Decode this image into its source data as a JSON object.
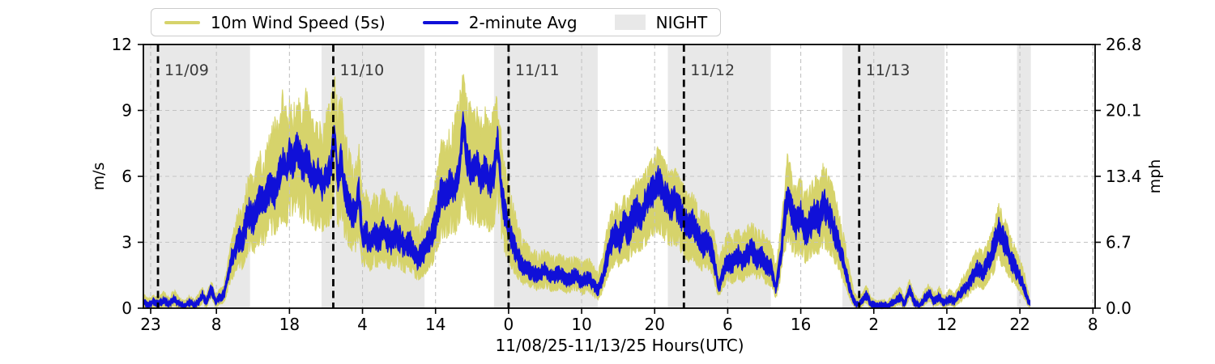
{
  "legend": {
    "items": [
      {
        "label": "10m Wind Speed (5s)",
        "swatch": "line",
        "color": "#d6d36b"
      },
      {
        "label": "2-minute Avg",
        "swatch": "line",
        "color": "#1010d8"
      },
      {
        "label": "NIGHT",
        "swatch": "patch",
        "color": "#e8e8e8"
      }
    ]
  },
  "chart_data": {
    "type": "line",
    "title": "",
    "xlabel": "11/08/25-11/13/25  Hours(UTC)",
    "ylabel_left": "m/s",
    "ylabel_right": "mph",
    "x_range_hours": [
      0,
      130.3
    ],
    "x_epoch": "hours after 2025-11-08 22:00 UTC",
    "ylim_ms": [
      0,
      12
    ],
    "ylim_mph": [
      0,
      26.8
    ],
    "grid": true,
    "colors": {
      "gust_series": "#d6d36b",
      "avg_series": "#1010d8",
      "night_band": "#e8e8e8",
      "gridline": "#c3c3c3",
      "day_line": "#000000",
      "day_label": "#3a3a3a",
      "frame": "#000000"
    },
    "x_ticks": {
      "t": [
        1,
        10,
        20,
        30,
        40,
        50,
        60,
        70,
        80,
        90,
        100,
        110,
        120,
        130
      ],
      "labels": [
        "23",
        "8",
        "18",
        "4",
        "14",
        "0",
        "10",
        "20",
        "6",
        "16",
        "2",
        "12",
        "22",
        "8"
      ]
    },
    "y_ticks_left": {
      "v": [
        0,
        3,
        6,
        9,
        12
      ],
      "labels": [
        "0",
        "3",
        "6",
        "9",
        "12"
      ]
    },
    "y_ticks_right": {
      "v": [
        0,
        3,
        6,
        9,
        12
      ],
      "labels": [
        "0.0",
        "6.7",
        "13.4",
        "20.1",
        "26.8"
      ]
    },
    "night_bands_hours": [
      [
        0,
        14.6
      ],
      [
        24.4,
        38.5
      ],
      [
        48.0,
        62.2
      ],
      [
        71.8,
        85.9
      ],
      [
        95.7,
        109.7
      ],
      [
        119.6,
        121.5
      ]
    ],
    "day_lines": [
      {
        "t": 2,
        "label": "11/09"
      },
      {
        "t": 26,
        "label": "11/10"
      },
      {
        "t": 50,
        "label": "11/11"
      },
      {
        "t": 74,
        "label": "11/12"
      },
      {
        "t": 98,
        "label": "11/13"
      }
    ],
    "series_meta": [
      {
        "name": "10m Wind Speed (5s)",
        "style": "noisy band between lull and gust"
      },
      {
        "name": "2-minute Avg",
        "style": "noisy line around avg"
      }
    ],
    "gust_lo_rule": {
      "mult": 0.62,
      "offset": -0.15,
      "min": 0.01
    },
    "columns": [
      "hours",
      "avg_2min_ms",
      "gust_5s_ms"
    ],
    "points": [
      [
        0,
        0.3,
        0.7
      ],
      [
        0.7,
        0.15,
        0.45
      ],
      [
        1.4,
        0.3,
        0.6
      ],
      [
        2.1,
        0.2,
        0.5
      ],
      [
        2.8,
        0.35,
        0.8
      ],
      [
        3.5,
        0.2,
        0.5
      ],
      [
        4.2,
        0.4,
        0.9
      ],
      [
        4.9,
        0.2,
        0.5
      ],
      [
        5.6,
        0.1,
        0.35
      ],
      [
        6.3,
        0.25,
        0.6
      ],
      [
        7,
        0.15,
        0.4
      ],
      [
        7.6,
        0.3,
        0.7
      ],
      [
        8.1,
        0.6,
        1.0
      ],
      [
        8.6,
        0.25,
        0.6
      ],
      [
        9.3,
        0.9,
        1.3
      ],
      [
        9.9,
        0.3,
        0.7
      ],
      [
        10.5,
        0.5,
        0.9
      ],
      [
        11,
        0.6,
        1.1
      ],
      [
        11.5,
        1.3,
        2.0
      ],
      [
        12,
        2.2,
        3.2
      ],
      [
        12.5,
        2.6,
        3.8
      ],
      [
        13,
        3.2,
        4.6
      ],
      [
        13.5,
        3.0,
        4.4
      ],
      [
        14,
        3.8,
        5.6
      ],
      [
        14.5,
        4.3,
        6.2
      ],
      [
        15,
        4.0,
        6.0
      ],
      [
        15.5,
        4.6,
        6.6
      ],
      [
        16,
        5.0,
        7.2
      ],
      [
        16.5,
        4.7,
        6.8
      ],
      [
        17,
        5.3,
        7.8
      ],
      [
        17.5,
        5.6,
        8.2
      ],
      [
        18,
        5.2,
        8.9
      ],
      [
        18.5,
        6.0,
        8.6
      ],
      [
        19.1,
        6.6,
        10.5
      ],
      [
        19.6,
        6.2,
        9.2
      ],
      [
        20,
        7.0,
        9.6
      ],
      [
        20.5,
        6.6,
        9.2
      ],
      [
        21,
        7.4,
        9.9
      ],
      [
        21.5,
        6.8,
        9.4
      ],
      [
        22,
        6.4,
        9.0
      ],
      [
        22.3,
        6.9,
        10.3
      ],
      [
        23,
        6.2,
        8.8
      ],
      [
        23.5,
        5.8,
        8.4
      ],
      [
        24,
        6.1,
        8.7
      ],
      [
        24.5,
        5.6,
        8.2
      ],
      [
        25,
        5.9,
        9.0
      ],
      [
        25.6,
        6.3,
        9.5
      ],
      [
        26.2,
        8.0,
        10.8
      ],
      [
        26.6,
        6.0,
        9.3
      ],
      [
        27.1,
        6.8,
        10.0
      ],
      [
        27.5,
        5.4,
        8.3
      ],
      [
        28,
        4.9,
        7.6
      ],
      [
        28.5,
        4.4,
        6.8
      ],
      [
        29,
        4.2,
        6.4
      ],
      [
        29.5,
        5.3,
        7.7
      ],
      [
        30,
        3.1,
        5.2
      ],
      [
        30.5,
        3.4,
        5.5
      ],
      [
        31,
        2.9,
        4.8
      ],
      [
        31.6,
        3.3,
        5.3
      ],
      [
        32.2,
        3.1,
        5.0
      ],
      [
        32.8,
        3.6,
        5.6
      ],
      [
        33.4,
        3.2,
        5.1
      ],
      [
        34,
        3.0,
        4.8
      ],
      [
        34.6,
        3.4,
        5.4
      ],
      [
        35.2,
        3.1,
        5.0
      ],
      [
        35.8,
        2.8,
        4.6
      ],
      [
        36.4,
        3.0,
        4.8
      ],
      [
        37,
        2.6,
        4.2
      ],
      [
        37.4,
        2.2,
        3.7
      ],
      [
        37.9,
        2.4,
        3.9
      ],
      [
        38.4,
        2.6,
        4.1
      ],
      [
        39,
        3.0,
        4.7
      ],
      [
        39.6,
        3.4,
        5.3
      ],
      [
        40.2,
        4.2,
        6.3
      ],
      [
        40.8,
        5.4,
        7.8
      ],
      [
        41.4,
        5.1,
        7.5
      ],
      [
        42,
        5.7,
        8.4
      ],
      [
        42.6,
        5.4,
        8.8
      ],
      [
        43.2,
        6.1,
        9.6
      ],
      [
        43.8,
        8.5,
        10.9
      ],
      [
        44.3,
        6.8,
        9.8
      ],
      [
        45,
        6.2,
        9.2
      ],
      [
        45.6,
        6.6,
        9.6
      ],
      [
        46.2,
        5.9,
        8.8
      ],
      [
        46.8,
        6.3,
        9.2
      ],
      [
        47.4,
        5.7,
        8.6
      ],
      [
        48,
        6.2,
        9.2
      ],
      [
        48.5,
        7.6,
        9.9
      ],
      [
        49,
        5.3,
        8.0
      ],
      [
        49.5,
        4.2,
        6.6
      ],
      [
        50,
        3.6,
        5.8
      ],
      [
        50.5,
        3.0,
        5.0
      ],
      [
        51,
        2.6,
        4.3
      ],
      [
        51.5,
        2.2,
        3.7
      ],
      [
        52,
        1.9,
        3.2
      ],
      [
        53,
        1.7,
        2.8
      ],
      [
        54,
        1.5,
        2.6
      ],
      [
        55,
        1.7,
        2.7
      ],
      [
        56,
        1.4,
        2.4
      ],
      [
        57,
        1.6,
        2.5
      ],
      [
        58,
        1.3,
        2.3
      ],
      [
        59,
        1.5,
        2.4
      ],
      [
        60,
        1.2,
        2.2
      ],
      [
        61,
        1.4,
        2.3
      ],
      [
        61.6,
        1.1,
        2.0
      ],
      [
        62.2,
        0.8,
        1.7
      ],
      [
        62.8,
        1.3,
        2.3
      ],
      [
        63.4,
        2.2,
        3.6
      ],
      [
        64,
        3.0,
        4.4
      ],
      [
        64.6,
        3.4,
        4.8
      ],
      [
        65.2,
        3.2,
        4.7
      ],
      [
        65.8,
        3.8,
        5.2
      ],
      [
        66.4,
        3.5,
        5.0
      ],
      [
        67,
        4.1,
        5.7
      ],
      [
        67.6,
        4.4,
        6.0
      ],
      [
        68.2,
        4.2,
        5.9
      ],
      [
        68.8,
        4.8,
        6.4
      ],
      [
        69.4,
        5.1,
        6.7
      ],
      [
        70,
        5.5,
        7.2
      ],
      [
        70.5,
        5.8,
        7.4
      ],
      [
        71,
        5.4,
        7.0
      ],
      [
        71.6,
        5.0,
        6.6
      ],
      [
        72.2,
        4.7,
        6.3
      ],
      [
        72.8,
        4.9,
        6.4
      ],
      [
        73.4,
        4.4,
        6.0
      ],
      [
        74,
        4.0,
        5.6
      ],
      [
        74.6,
        3.6,
        5.2
      ],
      [
        75.2,
        3.8,
        5.3
      ],
      [
        76,
        3.2,
        4.7
      ],
      [
        76.6,
        2.9,
        4.4
      ],
      [
        77.2,
        3.1,
        4.5
      ],
      [
        78,
        2.4,
        3.8
      ],
      [
        78.8,
        0.9,
        2.2
      ],
      [
        79.4,
        1.7,
        3.0
      ],
      [
        80,
        2.2,
        3.5
      ],
      [
        80.6,
        2.0,
        3.3
      ],
      [
        81.4,
        2.4,
        3.7
      ],
      [
        82,
        2.1,
        3.4
      ],
      [
        82.8,
        2.5,
        3.8
      ],
      [
        83.4,
        2.7,
        4.0
      ],
      [
        84,
        2.2,
        3.5
      ],
      [
        84.6,
        2.4,
        3.7
      ],
      [
        85.2,
        2.0,
        3.3
      ],
      [
        86,
        1.8,
        3.0
      ],
      [
        86.6,
        0.9,
        2.0
      ],
      [
        87.2,
        2.2,
        3.6
      ],
      [
        87.7,
        3.8,
        5.2
      ],
      [
        88.2,
        5.2,
        7.2
      ],
      [
        88.8,
        4.3,
        6.2
      ],
      [
        89.4,
        3.8,
        5.7
      ],
      [
        90,
        4.2,
        6.0
      ],
      [
        90.6,
        3.5,
        5.3
      ],
      [
        91.2,
        3.8,
        5.6
      ],
      [
        92,
        4.3,
        6.1
      ],
      [
        92.6,
        4.0,
        5.8
      ],
      [
        93.1,
        4.8,
        6.8
      ],
      [
        93.7,
        4.3,
        6.2
      ],
      [
        94.3,
        3.9,
        5.7
      ],
      [
        95,
        3.1,
        4.8
      ],
      [
        95.6,
        2.4,
        3.9
      ],
      [
        96.2,
        1.6,
        2.8
      ],
      [
        96.8,
        0.8,
        1.6
      ],
      [
        97.3,
        0.3,
        0.8
      ],
      [
        97.8,
        0.15,
        0.5
      ],
      [
        98.4,
        0.3,
        0.7
      ],
      [
        99,
        0.6,
        1.1
      ],
      [
        99.6,
        0.2,
        0.5
      ],
      [
        100.4,
        0.1,
        0.35
      ],
      [
        101.2,
        0.15,
        0.4
      ],
      [
        102,
        0.1,
        0.4
      ],
      [
        102.8,
        0.3,
        0.7
      ],
      [
        103.6,
        0.5,
        1.0
      ],
      [
        104.2,
        0.2,
        0.5
      ],
      [
        104.9,
        0.9,
        1.4
      ],
      [
        105.5,
        0.3,
        0.7
      ],
      [
        106.2,
        0.1,
        0.4
      ],
      [
        107,
        0.45,
        0.9
      ],
      [
        107.6,
        0.7,
        1.2
      ],
      [
        108.2,
        0.3,
        0.7
      ],
      [
        109,
        0.5,
        1.0
      ],
      [
        109.6,
        0.25,
        0.6
      ],
      [
        110.4,
        0.45,
        0.9
      ],
      [
        111,
        0.3,
        0.7
      ],
      [
        111.6,
        0.55,
        1.0
      ],
      [
        112.2,
        0.8,
        1.5
      ],
      [
        113,
        1.1,
        1.9
      ],
      [
        113.6,
        1.5,
        2.4
      ],
      [
        114.2,
        1.8,
        2.8
      ],
      [
        115,
        1.6,
        2.6
      ],
      [
        115.6,
        2.1,
        3.1
      ],
      [
        116.2,
        2.5,
        3.6
      ],
      [
        117.1,
        3.7,
        4.8
      ],
      [
        117.6,
        3.2,
        4.4
      ],
      [
        118.2,
        2.8,
        3.9
      ],
      [
        118.8,
        2.2,
        3.3
      ],
      [
        119.4,
        1.8,
        2.8
      ],
      [
        120,
        1.4,
        2.3
      ],
      [
        120.6,
        0.9,
        1.7
      ],
      [
        121,
        0.5,
        1.0
      ],
      [
        121.4,
        0.15,
        0.4
      ]
    ]
  }
}
